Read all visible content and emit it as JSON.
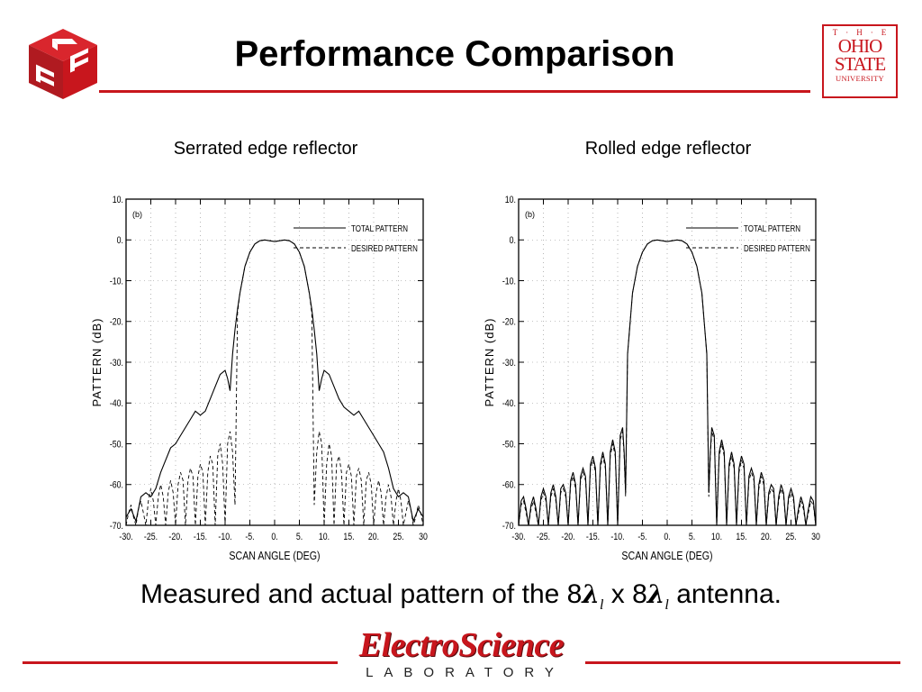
{
  "slide": {
    "title": "Performance Comparison",
    "caption_pre": "Measured and actual pattern of the 8",
    "caption_lambda": "λ",
    "caption_sub": "l",
    "caption_mid": " x 8",
    "caption_post": " antenna.",
    "accent_color": "#c8161d"
  },
  "logos": {
    "osu": {
      "the": "T·H·E",
      "ohio": "OHIO",
      "state": "STATE",
      "university": "UNIVERSITY"
    },
    "esl": {
      "top": "ElectroScience",
      "bottom": "LABORATORY"
    }
  },
  "chart_data": [
    {
      "type": "line",
      "heading": "Serrated edge reflector",
      "panel_label": "(b)",
      "xlabel": "SCAN ANGLE (DEG)",
      "ylabel": "PATTERN (dB)",
      "xlim": [
        -30,
        30
      ],
      "ylim": [
        -70,
        10
      ],
      "xticks": [
        "-30.",
        "-25.",
        "-20.",
        "-15.",
        "-10.",
        "-5.",
        "0.",
        "5.",
        "10.",
        "15.",
        "20.",
        "25.",
        "30"
      ],
      "yticks": [
        "10.",
        "0.",
        "-10.",
        "-20.",
        "-30.",
        "-40.",
        "-50.",
        "-60.",
        "-70."
      ],
      "grid": "dotted",
      "legend_position": "top-right",
      "series": [
        {
          "name": "TOTAL PATTERN",
          "style": "solid",
          "x": [
            -30,
            -29,
            -28,
            -27,
            -26,
            -25,
            -24,
            -23,
            -22,
            -21,
            -20,
            -19,
            -18,
            -17,
            -16,
            -15,
            -14,
            -13,
            -12,
            -11,
            -10,
            -9.5,
            -9,
            -8.5,
            -8,
            -7.5,
            -7,
            -6,
            -5,
            -4,
            -3,
            -2,
            -1,
            0,
            1,
            2,
            3,
            4,
            5,
            6,
            7,
            7.5,
            8,
            8.5,
            9,
            9.5,
            10,
            11,
            12,
            13,
            14,
            15,
            16,
            17,
            18,
            19,
            20,
            21,
            22,
            23,
            24,
            25,
            26,
            27,
            28,
            29,
            30
          ],
          "y": [
            -68,
            -66,
            -69,
            -63,
            -62,
            -63,
            -61,
            -57,
            -54,
            -51,
            -50,
            -48,
            -46,
            -44,
            -42,
            -43,
            -42,
            -39,
            -36,
            -33,
            -32,
            -34,
            -37,
            -28,
            -22,
            -17,
            -13,
            -6.5,
            -3,
            -1,
            -0.2,
            0,
            -0.2,
            -0.4,
            -0.2,
            0,
            -0.2,
            -1,
            -3,
            -6.5,
            -13,
            -17,
            -22,
            -28,
            -37,
            -34,
            -32,
            -33,
            -36,
            -39,
            -41,
            -42,
            -43,
            -42,
            -44,
            -46,
            -48,
            -50,
            -52,
            -56,
            -61,
            -63,
            -62,
            -63,
            -69,
            -66,
            -68
          ]
        },
        {
          "name": "DESIRED PATTERN",
          "style": "dashed",
          "x": [
            -30,
            -29.5,
            -29,
            -28.5,
            -28,
            -27.5,
            -27,
            -26.5,
            -26,
            -25.5,
            -25,
            -24.5,
            -24,
            -23.5,
            -23,
            -22.5,
            -22,
            -21.5,
            -21,
            -20.5,
            -20,
            -19.5,
            -19,
            -18.5,
            -18,
            -17.5,
            -17,
            -16.5,
            -16,
            -15.5,
            -15,
            -14.5,
            -14,
            -13.5,
            -13,
            -12.5,
            -12,
            -11.5,
            -11,
            -10.5,
            -10,
            -9.5,
            -9,
            -8.5,
            -8,
            -7.5,
            -7,
            -6,
            -5,
            -4,
            -3,
            -2,
            -1,
            0,
            1,
            2,
            3,
            4,
            5,
            6,
            7,
            7.5,
            8,
            8.5,
            9,
            9.5,
            10,
            10.5,
            11,
            11.5,
            12,
            12.5,
            13,
            13.5,
            14,
            14.5,
            15,
            15.5,
            16,
            16.5,
            17,
            17.5,
            18,
            18.5,
            19,
            19.5,
            20,
            20.5,
            21,
            21.5,
            22,
            22.5,
            23,
            23.5,
            24,
            24.5,
            25,
            25.5,
            26,
            26.5,
            27,
            27.5,
            28,
            28.5,
            29,
            29.5,
            30
          ],
          "y": [
            -70,
            -67,
            -65,
            -68,
            -70,
            -66,
            -64,
            -67,
            -70,
            -64,
            -61,
            -64,
            -70,
            -63,
            -60,
            -63,
            -70,
            -62,
            -59,
            -62,
            -70,
            -60,
            -57,
            -59,
            -70,
            -59,
            -56,
            -58,
            -70,
            -58,
            -55,
            -57,
            -70,
            -57,
            -53,
            -55,
            -70,
            -53,
            -50,
            -55,
            -70,
            -50,
            -47,
            -52,
            -65,
            -18,
            -13,
            -6.5,
            -3,
            -1,
            -0.2,
            0,
            -0.2,
            -0.4,
            -0.2,
            0,
            -0.2,
            -1,
            -3,
            -6.5,
            -13,
            -18,
            -65,
            -52,
            -47,
            -50,
            -70,
            -55,
            -50,
            -53,
            -70,
            -55,
            -53,
            -57,
            -70,
            -57,
            -55,
            -58,
            -70,
            -58,
            -56,
            -59,
            -70,
            -59,
            -57,
            -60,
            -70,
            -62,
            -59,
            -62,
            -70,
            -63,
            -60,
            -63,
            -70,
            -64,
            -61,
            -64,
            -70,
            -67,
            -64,
            -66,
            -70,
            -68,
            -65,
            -67,
            -70
          ]
        }
      ]
    },
    {
      "type": "line",
      "heading": "Rolled edge reflector",
      "panel_label": "(b)",
      "xlabel": "SCAN ANGLE (DEG)",
      "ylabel": "PATTERN (dB)",
      "xlim": [
        -30,
        30
      ],
      "ylim": [
        -70,
        10
      ],
      "xticks": [
        "-30.",
        "-25.",
        "-20.",
        "-15.",
        "-10.",
        "-5.",
        "0.",
        "5.",
        "10.",
        "15.",
        "20.",
        "25.",
        "30"
      ],
      "yticks": [
        "10.",
        "0.",
        "-10.",
        "-20.",
        "-30.",
        "-40.",
        "-50.",
        "-60.",
        "-70."
      ],
      "grid": "dotted",
      "legend_position": "top-right",
      "series": [
        {
          "name": "TOTAL PATTERN",
          "style": "solid",
          "x": [
            -30,
            -29.5,
            -29,
            -28.5,
            -28,
            -27.5,
            -27,
            -26.5,
            -26,
            -25.5,
            -25,
            -24.5,
            -24,
            -23.5,
            -23,
            -22.5,
            -22,
            -21.5,
            -21,
            -20.5,
            -20,
            -19.5,
            -19,
            -18.5,
            -18,
            -17.5,
            -17,
            -16.5,
            -16,
            -15.5,
            -15,
            -14.5,
            -14,
            -13.5,
            -13,
            -12.5,
            -12,
            -11.5,
            -11,
            -10.5,
            -10,
            -9.5,
            -9,
            -8.7,
            -8.4,
            -8,
            -7,
            -6,
            -5,
            -4,
            -3,
            -2,
            -1,
            0,
            1,
            2,
            3,
            4,
            5,
            6,
            7,
            8,
            8.4,
            8.7,
            9,
            9.5,
            10,
            10.5,
            11,
            11.5,
            12,
            12.5,
            13,
            13.5,
            14,
            14.5,
            15,
            15.5,
            16,
            16.5,
            17,
            17.5,
            18,
            18.5,
            19,
            19.5,
            20,
            20.5,
            21,
            21.5,
            22,
            22.5,
            23,
            23.5,
            24,
            24.5,
            25,
            25.5,
            26,
            26.5,
            27,
            27.5,
            28,
            28.5,
            29,
            29.5,
            30
          ],
          "y": [
            -70,
            -64,
            -63,
            -66,
            -70,
            -65,
            -63,
            -66,
            -70,
            -63,
            -61,
            -63,
            -70,
            -62,
            -60,
            -63,
            -70,
            -61,
            -60,
            -62,
            -70,
            -59,
            -57,
            -60,
            -70,
            -58,
            -56,
            -58,
            -70,
            -55,
            -53,
            -56,
            -70,
            -55,
            -52,
            -55,
            -70,
            -52,
            -49,
            -52,
            -70,
            -48,
            -46,
            -52,
            -62,
            -28,
            -13,
            -6.5,
            -3,
            -1,
            -0.2,
            0,
            -0.2,
            -0.4,
            -0.2,
            0,
            -0.2,
            -1,
            -3,
            -6.5,
            -13,
            -28,
            -62,
            -52,
            -46,
            -48,
            -70,
            -52,
            -49,
            -52,
            -70,
            -55,
            -52,
            -55,
            -70,
            -56,
            -53,
            -55,
            -70,
            -58,
            -56,
            -58,
            -70,
            -60,
            -57,
            -59,
            -70,
            -62,
            -60,
            -61,
            -70,
            -63,
            -60,
            -62,
            -70,
            -63,
            -61,
            -63,
            -70,
            -66,
            -63,
            -65,
            -70,
            -66,
            -63,
            -64,
            -70
          ]
        },
        {
          "name": "DESIRED PATTERN",
          "style": "dashed",
          "x": [
            -30,
            -29.5,
            -29,
            -28.5,
            -28,
            -27.5,
            -27,
            -26.5,
            -26,
            -25.5,
            -25,
            -24.5,
            -24,
            -23.5,
            -23,
            -22.5,
            -22,
            -21.5,
            -21,
            -20.5,
            -20,
            -19.5,
            -19,
            -18.5,
            -18,
            -17.5,
            -17,
            -16.5,
            -16,
            -15.5,
            -15,
            -14.5,
            -14,
            -13.5,
            -13,
            -12.5,
            -12,
            -11.5,
            -11,
            -10.5,
            -10,
            -9.5,
            -9,
            -8.7,
            -8.4,
            -8,
            -7,
            -6,
            -5,
            -4,
            -3,
            -2,
            -1,
            0,
            1,
            2,
            3,
            4,
            5,
            6,
            7,
            8,
            8.4,
            8.7,
            9,
            9.5,
            10,
            10.5,
            11,
            11.5,
            12,
            12.5,
            13,
            13.5,
            14,
            14.5,
            15,
            15.5,
            16,
            16.5,
            17,
            17.5,
            18,
            18.5,
            19,
            19.5,
            20,
            20.5,
            21,
            21.5,
            22,
            22.5,
            23,
            23.5,
            24,
            24.5,
            25,
            25.5,
            26,
            26.5,
            27,
            27.5,
            28,
            28.5,
            29,
            29.5,
            30
          ],
          "y": [
            -70,
            -65,
            -64,
            -67,
            -70,
            -66,
            -64,
            -67,
            -70,
            -64,
            -62,
            -64,
            -70,
            -63,
            -61,
            -64,
            -70,
            -62,
            -61,
            -63,
            -70,
            -60,
            -58,
            -61,
            -70,
            -59,
            -57,
            -59,
            -70,
            -56,
            -54,
            -57,
            -70,
            -56,
            -53,
            -56,
            -70,
            -53,
            -50,
            -53,
            -70,
            -49,
            -47,
            -53,
            -63,
            -28,
            -13,
            -6.5,
            -3,
            -1,
            -0.2,
            0,
            -0.2,
            -0.4,
            -0.2,
            0,
            -0.2,
            -1,
            -3,
            -6.5,
            -13,
            -28,
            -63,
            -53,
            -47,
            -49,
            -70,
            -53,
            -50,
            -53,
            -70,
            -56,
            -53,
            -56,
            -70,
            -57,
            -54,
            -56,
            -70,
            -59,
            -57,
            -59,
            -70,
            -61,
            -58,
            -60,
            -70,
            -63,
            -61,
            -62,
            -70,
            -64,
            -61,
            -63,
            -70,
            -64,
            -62,
            -64,
            -70,
            -67,
            -64,
            -66,
            -70,
            -67,
            -64,
            -65,
            -70
          ]
        }
      ]
    }
  ]
}
